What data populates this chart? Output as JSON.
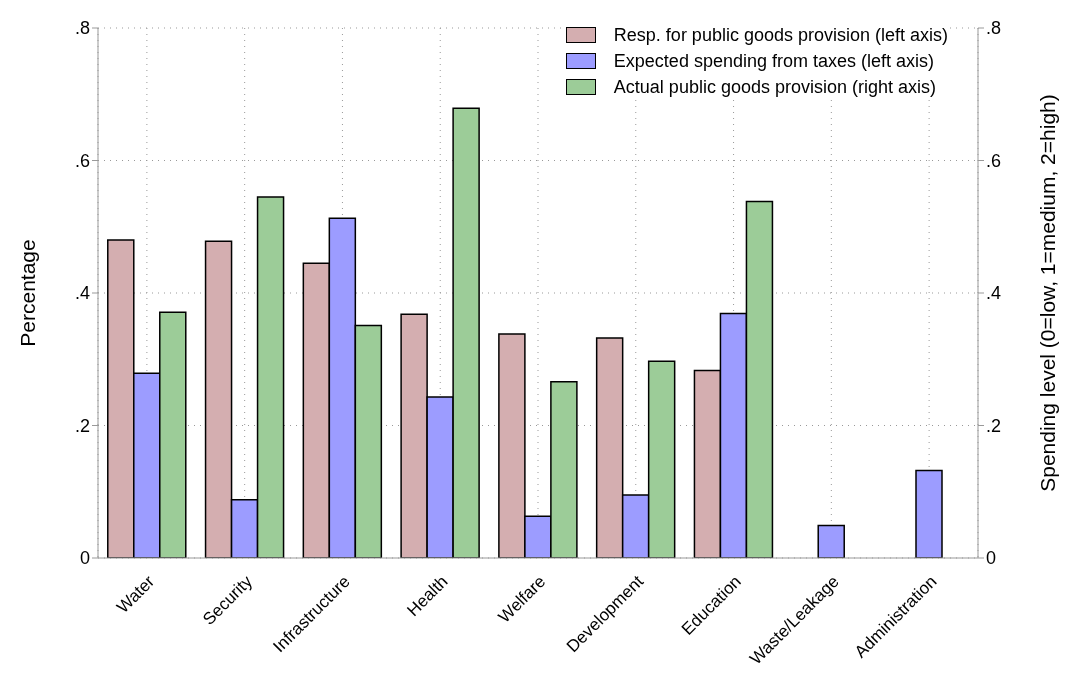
{
  "chart_data": {
    "type": "bar",
    "xlabel": null,
    "ylabel": "Percentage",
    "y2label": "Spending level (0=low, 1=medium, 2=high)",
    "categories": [
      "Water",
      "Security",
      "Infrastructure",
      "Health",
      "Welfare",
      "Development",
      "Education",
      "Waste/Leakage",
      "Administration"
    ],
    "series": [
      {
        "name": "Resp. for public goods provision (left axis)",
        "color": "#d4aeb0",
        "values": [
          0.48,
          0.478,
          0.445,
          0.368,
          0.338,
          0.332,
          0.283,
          null,
          null
        ]
      },
      {
        "name": "Expected spending from taxes (left axis)",
        "color": "#9c9cff",
        "values": [
          0.279,
          0.088,
          0.513,
          0.243,
          0.063,
          0.095,
          0.369,
          0.049,
          0.132
        ]
      },
      {
        "name": "Actual public goods provision (right axis)",
        "color": "#9ccc98",
        "axis": "y2",
        "values": [
          0.371,
          0.545,
          0.351,
          0.679,
          0.266,
          0.297,
          0.538,
          null,
          null
        ]
      }
    ],
    "ylim": [
      0,
      0.8
    ],
    "yticks": [
      0,
      {
        "value": 0.2,
        "label": ".2"
      },
      {
        "value": 0.4,
        "label": ".4"
      },
      {
        "value": 0.6,
        "label": ".6"
      },
      {
        "value": 0.8,
        "label": ".8"
      }
    ],
    "y2lim": [
      0,
      0.8
    ],
    "y2ticks": [
      0,
      {
        "value": 0.2,
        "label": ".2"
      },
      {
        "value": 0.4,
        "label": ".4"
      },
      {
        "value": 0.6,
        "label": ".6"
      },
      {
        "value": 0.8,
        "label": ".8"
      }
    ],
    "grid": true,
    "legend": "top right"
  }
}
